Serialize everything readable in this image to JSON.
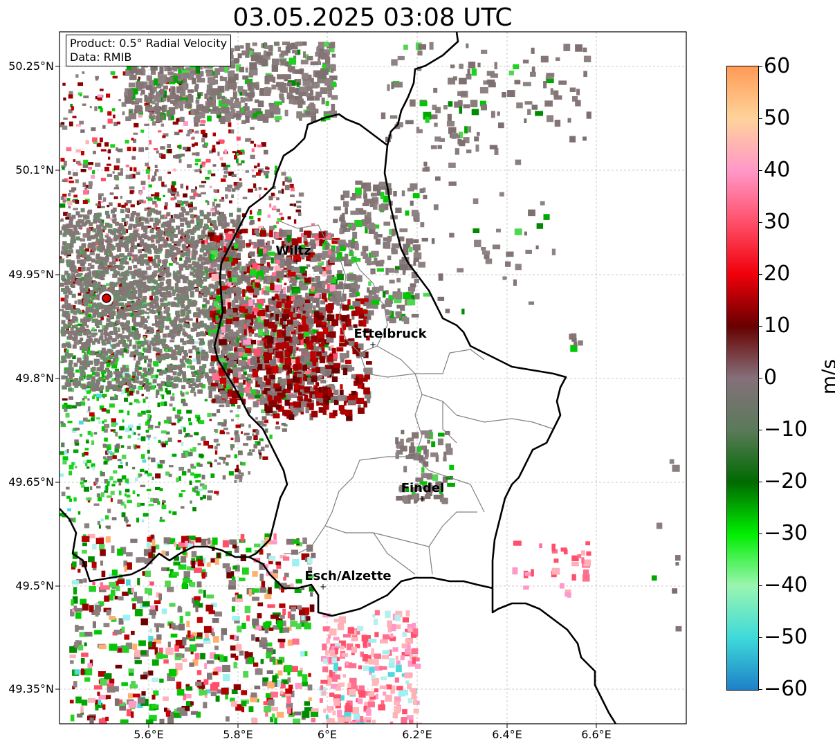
{
  "title": "03.05.2025 03:08 UTC",
  "info_box": {
    "line1": "Product: 0.5° Radial Velocity",
    "line2": "Data: RMIB"
  },
  "lat_ticks": [
    "50.25°N",
    "50.1°N",
    "49.95°N",
    "49.8°N",
    "49.65°N",
    "49.5°N",
    "49.35°N"
  ],
  "lon_ticks": [
    "5.6°E",
    "5.8°E",
    "6°E",
    "6.2°E",
    "6.4°E",
    "6.6°E"
  ],
  "cities": [
    {
      "name": "Wiltz"
    },
    {
      "name": "Ettelbruck"
    },
    {
      "name": "Findel"
    },
    {
      "name": "Esch/Alzette"
    }
  ],
  "colorbar": {
    "unit": "m/s",
    "ticks": [
      "60",
      "50",
      "40",
      "30",
      "20",
      "10",
      "0",
      "−10",
      "−20",
      "−30",
      "−40",
      "−50",
      "−60"
    ],
    "stops": [
      "#ff9a55",
      "#ffd39a",
      "#ff98c8",
      "#ff4f6a",
      "#f0000a",
      "#680000",
      "#85707a",
      "#5a7a5a",
      "#006a00",
      "#00ee00",
      "#9af5b0",
      "#3ddada",
      "#1e80c8"
    ]
  },
  "colors": {
    "radar_site": "#e00000",
    "border_national": "#000000",
    "border_cantonal": "#808080"
  }
}
